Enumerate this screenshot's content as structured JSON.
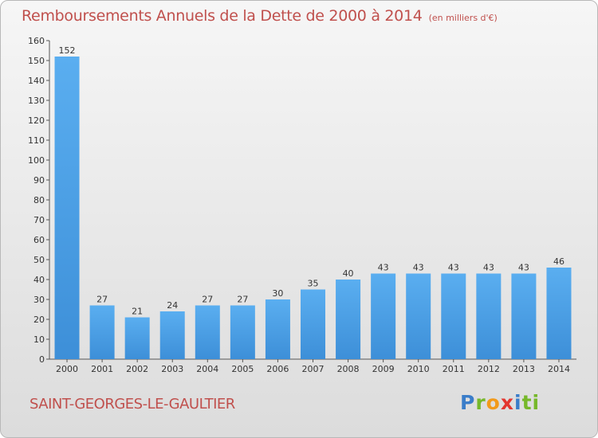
{
  "chart_data": {
    "type": "bar",
    "title": "Remboursements Annuels de la Dette de 2000 à 2014",
    "unit_note": "(en milliers d'€)",
    "categories": [
      "2000",
      "2001",
      "2002",
      "2003",
      "2004",
      "2005",
      "2006",
      "2007",
      "2008",
      "2009",
      "2010",
      "2011",
      "2012",
      "2013",
      "2014"
    ],
    "values": [
      152,
      27,
      21,
      24,
      27,
      27,
      30,
      35,
      40,
      43,
      43,
      43,
      43,
      43,
      46
    ],
    "ylim": [
      0,
      160
    ],
    "yticks": [
      0,
      10,
      20,
      30,
      40,
      50,
      60,
      70,
      80,
      90,
      100,
      110,
      120,
      130,
      140,
      150,
      160
    ],
    "bar_color": "#3d8fd8",
    "bar_color_light": "#5aaef0",
    "grid": false,
    "xlabel": "",
    "ylabel": ""
  },
  "footer": {
    "commune": "SAINT-GEORGES-LE-GAULTIER",
    "logo": [
      "P",
      "r",
      "o",
      "x",
      "i",
      "ti"
    ]
  }
}
